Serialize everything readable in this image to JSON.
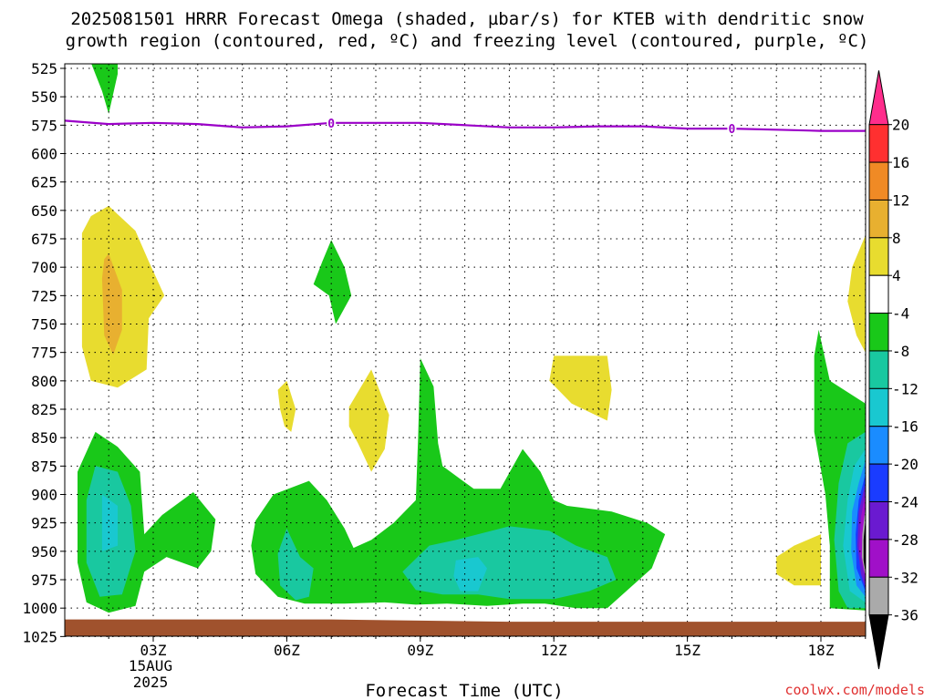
{
  "chart_data": {
    "type": "heatmap",
    "title_line1": "2025081501 HRRR Forecast Omega (shaded, µbar/s) for KTEB with dendritic snow",
    "title_line2": "growth region (contoured, red, ºC) and freezing level (contoured, purple, ºC)",
    "xlabel": "Forecast Time (UTC)",
    "x_ticks": [
      {
        "hour": 3,
        "label": "03Z"
      },
      {
        "hour": 6,
        "label": "06Z"
      },
      {
        "hour": 9,
        "label": "09Z"
      },
      {
        "hour": 12,
        "label": "12Z"
      },
      {
        "hour": 15,
        "label": "15Z"
      },
      {
        "hour": 18,
        "label": "18Z"
      }
    ],
    "x_date_label": "15AUG",
    "x_year_label": "2025",
    "xlim": [
      1,
      19
    ],
    "y_ticks": [
      525,
      550,
      575,
      600,
      625,
      650,
      675,
      700,
      725,
      750,
      775,
      800,
      825,
      850,
      875,
      900,
      925,
      950,
      975,
      1000,
      1025
    ],
    "ylim": [
      1025,
      515
    ],
    "grid": true,
    "colorbar_labels": [
      "20",
      "16",
      "12",
      "8",
      "4",
      "-4",
      "-8",
      "-12",
      "-16",
      "-20",
      "-24",
      "-28",
      "-32",
      "-36"
    ],
    "colorbar_colors": [
      "#ff2d8c",
      "#ff3030",
      "#f08a25",
      "#e8b030",
      "#e8dc2f",
      "#ffffff",
      "#19c819",
      "#19c8a0",
      "#19c8d0",
      "#1a8cff",
      "#1a3cff",
      "#6a1ad0",
      "#a010c8",
      "#aaaaaa",
      "#000000"
    ],
    "freezing_level": {
      "label": "0",
      "color": "#9b00c8",
      "hours": [
        1,
        2,
        3,
        4,
        5,
        6,
        7,
        8,
        9,
        10,
        11,
        12,
        13,
        14,
        15,
        16,
        17,
        18,
        19
      ],
      "pressure": [
        571,
        574,
        573,
        574,
        577,
        576,
        573,
        573,
        573,
        575,
        577,
        577,
        576,
        576,
        578,
        578,
        579,
        580,
        580
      ]
    },
    "omega_regions": [
      {
        "color": "#19c819",
        "points": [
          [
            1.6,
            516
          ],
          [
            2.2,
            516
          ],
          [
            2.2,
            530
          ],
          [
            2.0,
            565
          ],
          [
            1.85,
            545
          ],
          [
            1.6,
            520
          ]
        ]
      },
      {
        "color": "#e8dc2f",
        "points": [
          [
            3.0,
            516
          ],
          [
            3.05,
            516
          ],
          [
            3.0,
            522
          ]
        ]
      },
      {
        "color": "#e8dc2f",
        "points": [
          [
            1.4,
            670
          ],
          [
            1.6,
            655
          ],
          [
            2.0,
            646
          ],
          [
            2.6,
            668
          ],
          [
            2.9,
            695
          ],
          [
            3.25,
            725
          ],
          [
            2.9,
            745
          ],
          [
            2.85,
            790
          ],
          [
            2.2,
            806
          ],
          [
            1.6,
            800
          ],
          [
            1.4,
            770
          ],
          [
            1.4,
            700
          ]
        ]
      },
      {
        "color": "#e8b030",
        "points": [
          [
            1.9,
            693
          ],
          [
            2.0,
            688
          ],
          [
            2.3,
            720
          ],
          [
            2.3,
            755
          ],
          [
            2.1,
            777
          ],
          [
            1.9,
            760
          ],
          [
            1.85,
            710
          ]
        ]
      },
      {
        "color": "#19c819",
        "points": [
          [
            7.0,
            676
          ],
          [
            7.3,
            700
          ],
          [
            7.45,
            725
          ],
          [
            7.1,
            750
          ],
          [
            6.95,
            725
          ],
          [
            6.6,
            715
          ],
          [
            6.8,
            695
          ]
        ]
      },
      {
        "color": "#e8dc2f",
        "points": [
          [
            5.8,
            808
          ],
          [
            6.0,
            800
          ],
          [
            6.2,
            825
          ],
          [
            6.1,
            845
          ],
          [
            5.95,
            840
          ],
          [
            5.85,
            825
          ]
        ]
      },
      {
        "color": "#e8dc2f",
        "points": [
          [
            7.4,
            823
          ],
          [
            7.9,
            790
          ],
          [
            8.3,
            830
          ],
          [
            8.2,
            860
          ],
          [
            7.9,
            880
          ],
          [
            7.6,
            855
          ],
          [
            7.4,
            840
          ]
        ]
      },
      {
        "color": "#e8dc2f",
        "points": [
          [
            12.0,
            778
          ],
          [
            12.5,
            778
          ],
          [
            13.2,
            778
          ],
          [
            13.3,
            808
          ],
          [
            13.2,
            835
          ],
          [
            12.4,
            820
          ],
          [
            11.9,
            800
          ]
        ]
      },
      {
        "color": "#e8dc2f",
        "points": [
          [
            17.0,
            955
          ],
          [
            17.4,
            945
          ],
          [
            18.0,
            935
          ],
          [
            18.0,
            980
          ],
          [
            17.4,
            980
          ],
          [
            17.0,
            970
          ]
        ]
      },
      {
        "color": "#e8dc2f",
        "points": [
          [
            19.0,
            672
          ],
          [
            18.7,
            700
          ],
          [
            18.6,
            730
          ],
          [
            18.8,
            760
          ],
          [
            19.0,
            775
          ]
        ]
      },
      {
        "color": "#19c819",
        "points": [
          [
            1.3,
            880
          ],
          [
            1.7,
            845
          ],
          [
            2.2,
            858
          ],
          [
            2.7,
            880
          ],
          [
            2.8,
            935
          ],
          [
            3.2,
            918
          ],
          [
            3.9,
            898
          ],
          [
            4.4,
            922
          ],
          [
            4.3,
            950
          ],
          [
            4.0,
            965
          ],
          [
            3.3,
            955
          ],
          [
            2.8,
            968
          ],
          [
            2.6,
            998
          ],
          [
            2.0,
            1004
          ],
          [
            1.5,
            995
          ],
          [
            1.3,
            960
          ]
        ]
      },
      {
        "color": "#19c8a0",
        "points": [
          [
            1.5,
            905
          ],
          [
            1.7,
            875
          ],
          [
            2.2,
            880
          ],
          [
            2.5,
            910
          ],
          [
            2.6,
            950
          ],
          [
            2.3,
            988
          ],
          [
            1.8,
            990
          ],
          [
            1.5,
            960
          ]
        ]
      },
      {
        "color": "#19c8d0",
        "points": [
          [
            1.85,
            900
          ],
          [
            2.2,
            910
          ],
          [
            2.2,
            945
          ],
          [
            1.85,
            950
          ]
        ]
      },
      {
        "color": "#19c819",
        "points": [
          [
            5.3,
            923
          ],
          [
            5.7,
            900
          ],
          [
            6.5,
            888
          ],
          [
            6.9,
            905
          ],
          [
            7.3,
            930
          ],
          [
            7.5,
            947
          ],
          [
            7.9,
            940
          ],
          [
            8.4,
            925
          ],
          [
            8.9,
            905
          ],
          [
            8.95,
            850
          ],
          [
            9.0,
            780
          ],
          [
            9.3,
            805
          ],
          [
            9.4,
            855
          ],
          [
            9.5,
            875
          ],
          [
            10.2,
            895
          ],
          [
            10.8,
            895
          ],
          [
            11.3,
            860
          ],
          [
            11.7,
            880
          ],
          [
            12.0,
            905
          ],
          [
            12.3,
            910
          ],
          [
            13.3,
            915
          ],
          [
            14.1,
            925
          ],
          [
            14.5,
            935
          ],
          [
            14.2,
            965
          ],
          [
            13.2,
            1000
          ],
          [
            12.5,
            1000
          ],
          [
            11.8,
            996
          ],
          [
            11.3,
            996
          ],
          [
            10.5,
            998
          ],
          [
            9.6,
            996
          ],
          [
            8.9,
            997
          ],
          [
            8.2,
            995
          ],
          [
            7.3,
            996
          ],
          [
            6.4,
            996
          ],
          [
            5.8,
            990
          ],
          [
            5.3,
            970
          ],
          [
            5.2,
            945
          ]
        ]
      },
      {
        "color": "#19c8a0",
        "points": [
          [
            5.8,
            952
          ],
          [
            6.0,
            930
          ],
          [
            6.3,
            955
          ],
          [
            6.6,
            965
          ],
          [
            6.5,
            990
          ],
          [
            6.2,
            993
          ],
          [
            5.85,
            980
          ]
        ]
      },
      {
        "color": "#19c8a0",
        "points": [
          [
            8.6,
            968
          ],
          [
            9.2,
            945
          ],
          [
            9.8,
            940
          ],
          [
            10.3,
            935
          ],
          [
            11.0,
            928
          ],
          [
            11.9,
            932
          ],
          [
            12.5,
            945
          ],
          [
            13.2,
            955
          ],
          [
            13.4,
            975
          ],
          [
            12.8,
            985
          ],
          [
            12.0,
            992
          ],
          [
            11.0,
            992
          ],
          [
            10.3,
            988
          ],
          [
            9.5,
            988
          ],
          [
            8.9,
            984
          ]
        ]
      },
      {
        "color": "#19c8d0",
        "points": [
          [
            9.8,
            958
          ],
          [
            10.3,
            955
          ],
          [
            10.5,
            965
          ],
          [
            10.3,
            985
          ],
          [
            9.9,
            985
          ],
          [
            9.75,
            972
          ]
        ]
      },
      {
        "color": "#19c819",
        "points": [
          [
            19.0,
            820
          ],
          [
            18.6,
            810
          ],
          [
            18.2,
            800
          ],
          [
            17.95,
            755
          ],
          [
            17.85,
            778
          ],
          [
            17.85,
            845
          ],
          [
            18.1,
            900
          ],
          [
            18.2,
            945
          ],
          [
            18.2,
            1000
          ],
          [
            19.0,
            1002
          ]
        ]
      },
      {
        "color": "#19c8a0",
        "points": [
          [
            19.0,
            845
          ],
          [
            18.6,
            855
          ],
          [
            18.4,
            890
          ],
          [
            18.3,
            940
          ],
          [
            18.4,
            985
          ],
          [
            18.6,
            1000
          ],
          [
            19.0,
            1000
          ]
        ]
      },
      {
        "color": "#19c8d0",
        "points": [
          [
            19.0,
            860
          ],
          [
            18.75,
            875
          ],
          [
            18.6,
            905
          ],
          [
            18.5,
            945
          ],
          [
            18.65,
            985
          ],
          [
            19.0,
            995
          ]
        ]
      },
      {
        "color": "#1a8cff",
        "points": [
          [
            19.0,
            870
          ],
          [
            18.85,
            890
          ],
          [
            18.7,
            915
          ],
          [
            18.68,
            950
          ],
          [
            18.8,
            980
          ],
          [
            19.0,
            990
          ]
        ]
      },
      {
        "color": "#1a3cff",
        "points": [
          [
            19.0,
            882
          ],
          [
            18.85,
            905
          ],
          [
            18.78,
            935
          ],
          [
            18.8,
            965
          ],
          [
            19.0,
            985
          ]
        ]
      },
      {
        "color": "#6a1ad0",
        "points": [
          [
            19.0,
            890
          ],
          [
            18.85,
            915
          ],
          [
            18.82,
            945
          ],
          [
            18.9,
            970
          ],
          [
            19.0,
            982
          ]
        ]
      },
      {
        "color": "#a010c8",
        "points": [
          [
            19.0,
            898
          ],
          [
            18.9,
            920
          ],
          [
            18.86,
            948
          ],
          [
            19.0,
            975
          ]
        ]
      },
      {
        "color": "#aaaaaa",
        "points": [
          [
            19.0,
            912
          ],
          [
            18.93,
            935
          ],
          [
            18.92,
            955
          ],
          [
            19.0,
            972
          ]
        ]
      },
      {
        "color": "#000000",
        "points": [
          [
            19.0,
            922
          ],
          [
            18.96,
            940
          ],
          [
            18.96,
            958
          ],
          [
            19.0,
            968
          ]
        ]
      }
    ],
    "terrain": {
      "color": "#a0522d",
      "top_pressure": [
        1010,
        1012
      ]
    }
  },
  "credit": "coolwx.com/models"
}
